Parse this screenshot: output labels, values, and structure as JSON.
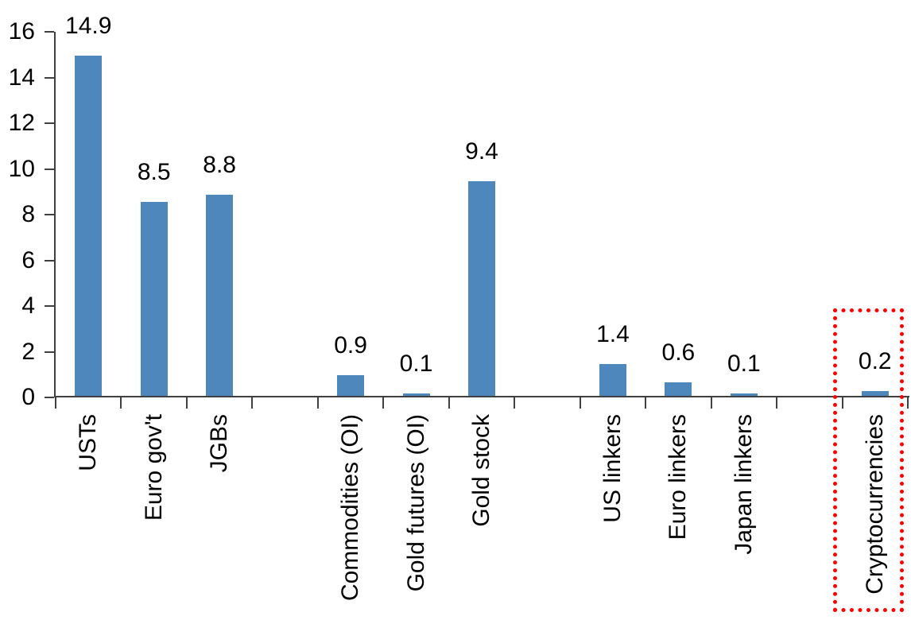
{
  "chart_data": {
    "type": "bar",
    "title": "",
    "categories": [
      "USTs",
      "Euro gov't",
      "JGBs",
      "Commodities (OI)",
      "Gold futures (OI)",
      "Gold stock",
      "US linkers",
      "Euro linkers",
      "Japan linkers",
      "Cryptocurrencies"
    ],
    "values": [
      14.9,
      8.5,
      8.8,
      0.9,
      0.1,
      9.4,
      1.4,
      0.6,
      0.1,
      0.2
    ],
    "data_labels": [
      "14.9",
      "8.5",
      "8.8",
      "0.9",
      "0.1",
      "9.4",
      "1.4",
      "0.6",
      "0.1",
      "0.2"
    ],
    "xlabel": "",
    "ylabel": "",
    "ylim": [
      0,
      16
    ],
    "yticks": [
      0,
      2,
      4,
      6,
      8,
      10,
      12,
      14,
      16
    ],
    "grid": false,
    "legend": null,
    "bar_color": "#4E87BC",
    "axis_color": "#404040",
    "text_color": "#000000",
    "slot_layout": [
      0,
      1,
      2,
      null,
      3,
      4,
      5,
      null,
      6,
      7,
      8,
      null,
      9
    ],
    "highlight": {
      "target_category": "Cryptocurrencies",
      "border_color": "#FF0000",
      "border_style": "dotted"
    }
  }
}
